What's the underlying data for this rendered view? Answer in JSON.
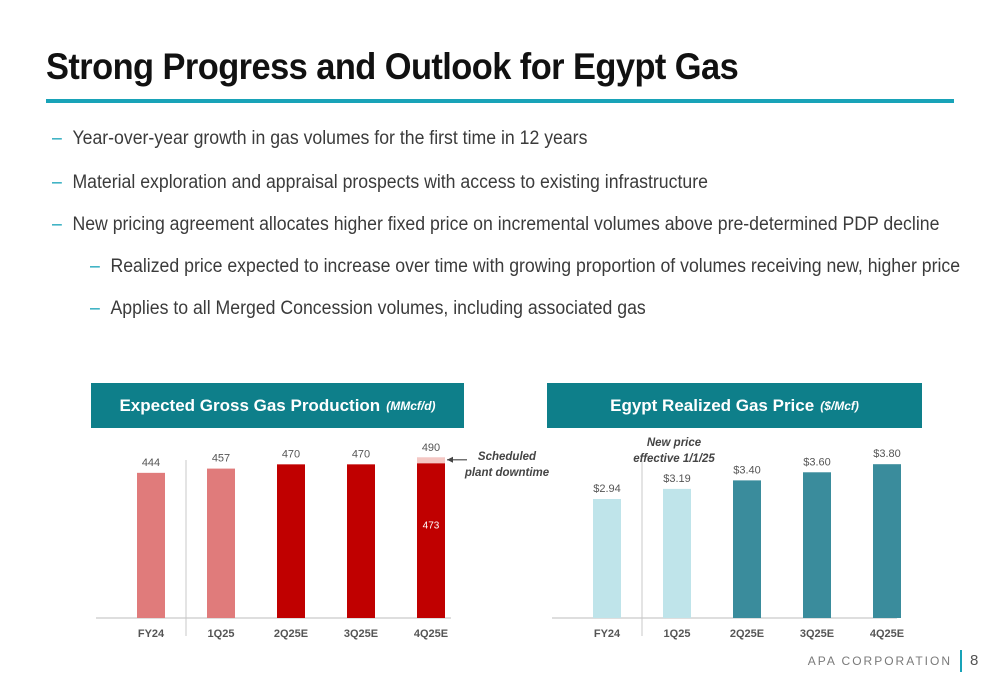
{
  "slide": {
    "title": "Strong Progress and Outlook for Egypt Gas",
    "bullets": [
      {
        "text": "Year-over-year growth in gas volumes for the first time in 12 years",
        "level": 1
      },
      {
        "text": "Material exploration and appraisal prospects with access to existing infrastructure",
        "level": 1
      },
      {
        "text": "New pricing agreement allocates higher fixed price on incremental volumes above pre-determined PDP decline",
        "level": 1
      },
      {
        "text": "Realized price expected to increase over time with growing proportion of volumes receiving new, higher price",
        "level": 2
      },
      {
        "text": "Applies to all Merged Concession volumes, including associated gas",
        "level": 2
      }
    ],
    "bullet_marker": "–",
    "footer": "APA CORPORATION",
    "page_number": "8",
    "colors": {
      "accent": "#18a3b8",
      "banner": "#0e7f8a"
    }
  },
  "chart_data": [
    {
      "type": "bar",
      "title": "Expected Gross Gas Production",
      "unit": "(MMcf/d)",
      "categories": [
        "FY24",
        "1Q25",
        "2Q25E",
        "3Q25E",
        "4Q25E"
      ],
      "values": [
        444,
        457,
        470,
        470,
        490
      ],
      "value_labels": [
        "444",
        "457",
        "470",
        "470",
        "490"
      ],
      "bar_colors": [
        "#e07b7b",
        "#e07b7b",
        "#c00000",
        "#c00000",
        "#c00000"
      ],
      "inner_segment": {
        "category": "4Q25E",
        "value": 473,
        "label": "473",
        "top_color": "#f4c7c3"
      },
      "annotation": {
        "text": [
          "Scheduled",
          "plant downtime"
        ],
        "category": "4Q25E"
      },
      "divider_after": "FY24",
      "ylim": [
        0,
        520
      ]
    },
    {
      "type": "bar",
      "title": "Egypt Realized Gas Price",
      "unit": "($/Mcf)",
      "categories": [
        "FY24",
        "1Q25",
        "2Q25E",
        "3Q25E",
        "4Q25E"
      ],
      "values": [
        2.94,
        3.19,
        3.4,
        3.6,
        3.8
      ],
      "value_labels": [
        "$2.94",
        "$3.19",
        "$3.40",
        "$3.60",
        "$3.80"
      ],
      "bar_colors": [
        "#bfe4ea",
        "#bfe4ea",
        "#3a8c9c",
        "#3a8c9c",
        "#3a8c9c"
      ],
      "annotation": {
        "text": [
          "New price",
          "effective 1/1/25"
        ],
        "category": "1Q25"
      },
      "divider_after": "FY24",
      "ylim": [
        0,
        4.2
      ]
    }
  ]
}
